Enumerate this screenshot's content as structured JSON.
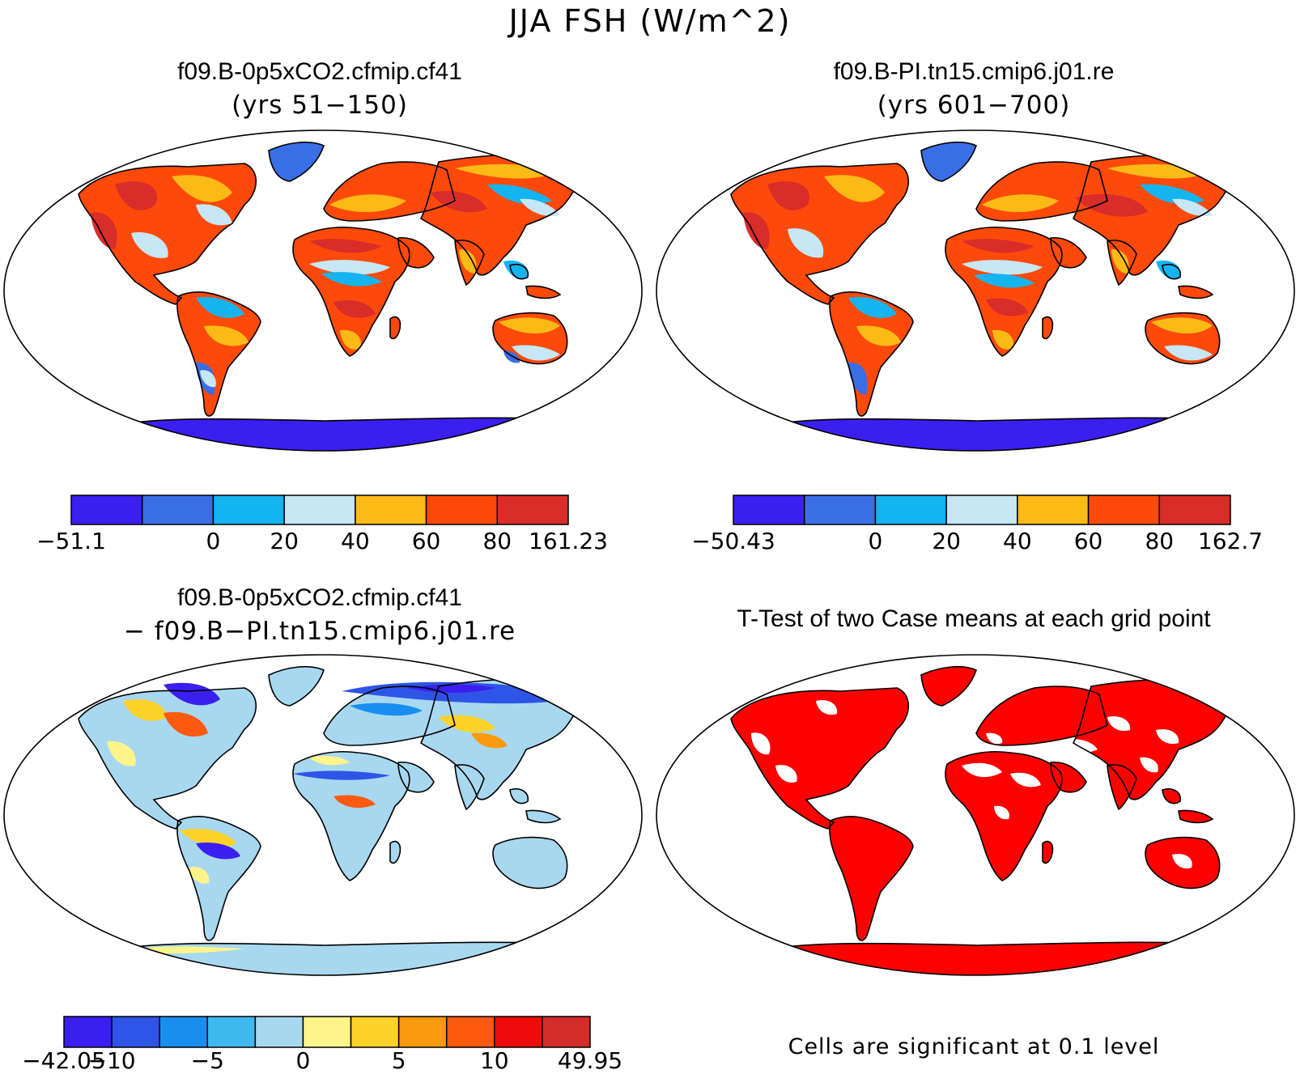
{
  "figure_title": "JJA FSH (W/m^2)",
  "panels": [
    {
      "case": "f09.B-0p5xCO2.cfmip.cf41",
      "subtitle": "(yrs 51−150)",
      "colorbar": {
        "colors": [
          "#3b1ff0",
          "#3a6ee6",
          "#14b4f0",
          "#c7e6f6",
          "#fbba16",
          "#fd4a0a",
          "#d92d2a"
        ],
        "labels": [
          "−51.1",
          "",
          "0",
          "20",
          "40",
          "60",
          "80",
          "161.23"
        ]
      }
    },
    {
      "case": "f09.B-PI.tn15.cmip6.j01.re",
      "subtitle": "(yrs 601−700)",
      "colorbar": {
        "colors": [
          "#3b1ff0",
          "#3a6ee6",
          "#14b4f0",
          "#c7e6f6",
          "#fbba16",
          "#fd4a0a",
          "#d92d2a"
        ],
        "labels": [
          "−50.43",
          "",
          "0",
          "20",
          "40",
          "60",
          "80",
          "162.7"
        ]
      }
    },
    {
      "case": "f09.B-0p5xCO2.cfmip.cf41",
      "subtitle": "− f09.B−PI.tn15.cmip6.j01.re",
      "colorbar": {
        "colors": [
          "#3b1ff0",
          "#2e55e8",
          "#1a8ef0",
          "#3fb8ef",
          "#a8d8f0",
          "#fff48a",
          "#fdd22a",
          "#fb9a0e",
          "#fc5a10",
          "#ee0b0b",
          "#d42b2b"
        ],
        "labels": [
          "−42.05",
          "−10",
          "",
          "−5",
          "",
          "0",
          "",
          "5",
          "",
          "10",
          "",
          "49.95"
        ]
      }
    },
    {
      "case": "T-Test of two Case means at each grid point",
      "footnote": "Cells are significant at 0.1 level"
    }
  ],
  "map_colors": {
    "ocean": "#ffffff",
    "coast": "#000000",
    "significant": "#ff0000"
  }
}
